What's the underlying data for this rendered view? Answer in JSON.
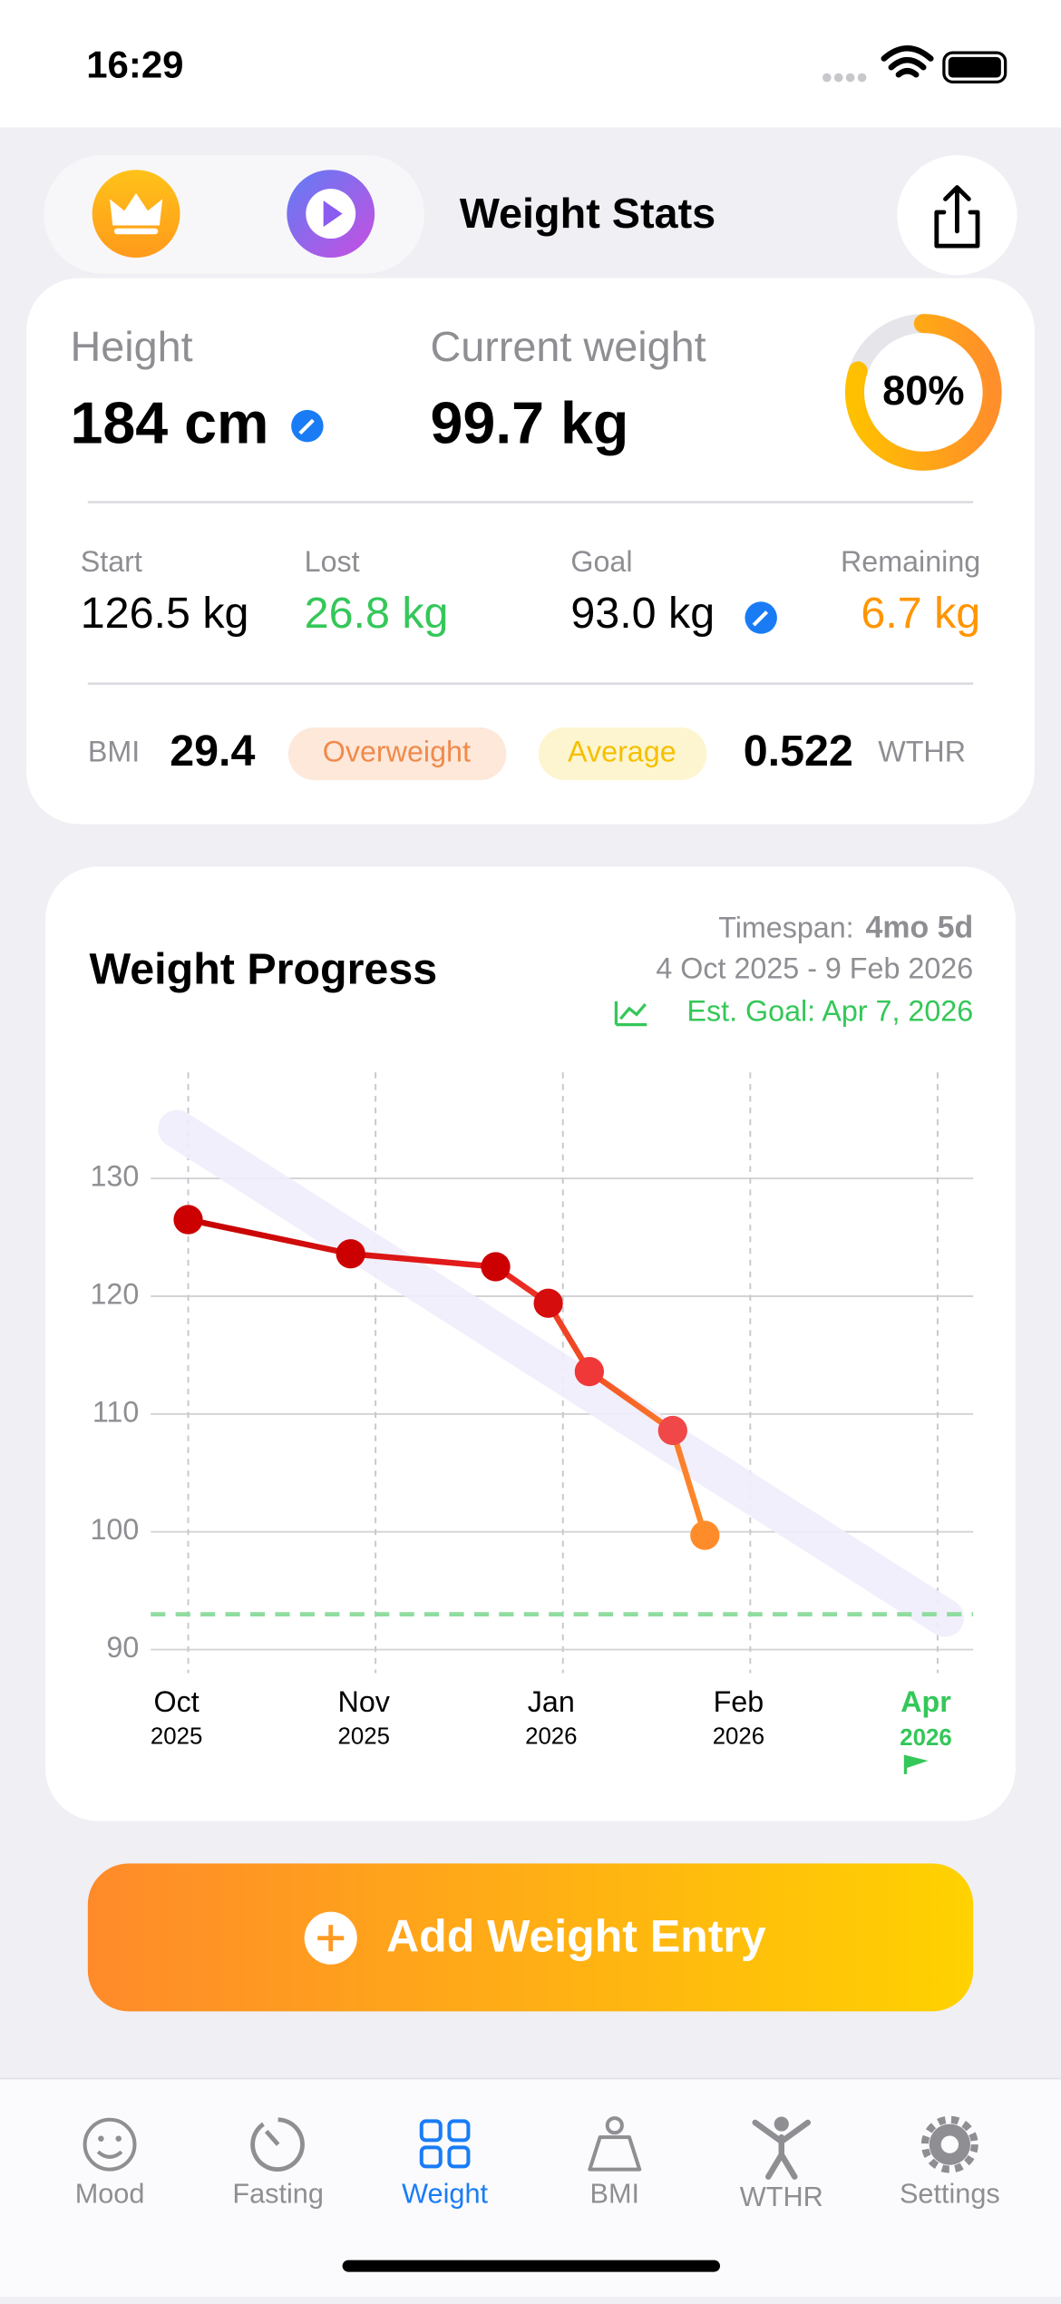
{
  "status_bar": {
    "time": "16:29"
  },
  "header": {
    "title": "Weight Stats"
  },
  "stats": {
    "height_label": "Height",
    "height": "184 cm",
    "current_label": "Current weight",
    "current": "99.7 kg",
    "progress": {
      "value": 80,
      "label": "80%"
    },
    "start_label": "Start",
    "start": "126.5 kg",
    "lost_label": "Lost",
    "lost": "26.8 kg",
    "goal_label": "Goal",
    "goal": "93.0 kg",
    "remaining_label": "Remaining",
    "remaining": "6.7 kg",
    "bmi_label": "BMI",
    "bmi": "29.4",
    "bmi_class": "Overweight",
    "wthr_class": "Average",
    "wthr": "0.522",
    "wthr_label": "WTHR"
  },
  "progress_card": {
    "title": "Weight Progress",
    "timespan_label": "Timespan:",
    "timespan": "4mo 5d",
    "range": "4 Oct 2025 - 9 Feb 2026",
    "est_goal": "Est. Goal: Apr 7, 2026"
  },
  "chart_data": {
    "type": "line",
    "xlim": [
      -0.2,
      4.19
    ],
    "ylim": [
      88,
      139
    ],
    "xticks": [
      {
        "value": 0,
        "label": "Oct"
      },
      {
        "value": 1,
        "label": "Nov"
      },
      {
        "value": 2,
        "label": "Jan"
      },
      {
        "value": 3,
        "label": "Feb"
      },
      {
        "value": 4,
        "label": "Apr"
      }
    ],
    "xtick_years": [
      "2025",
      "2025",
      "2026",
      "2026",
      "2026"
    ],
    "yticks": [
      90,
      100,
      110,
      120,
      130
    ],
    "grid": true,
    "series": [
      {
        "name": "Weight",
        "color": "#d40000",
        "x": [
          0,
          0.867,
          1.641,
          1.922,
          2.141,
          2.586,
          2.758
        ],
        "values": [
          126.5,
          123.6,
          122.5,
          119.4,
          113.6,
          108.6,
          99.7
        ],
        "point_colors": [
          "#cc0000",
          "#cc0000",
          "#cc0000",
          "#d50d0d",
          "#f03838",
          "#f04848",
          "#ff8c2a"
        ]
      }
    ],
    "trend": {
      "x": [
        -0.06,
        4.04
      ],
      "values": [
        134.2,
        92.7
      ],
      "color": "#f0eefc"
    },
    "goal_line": {
      "value": 93.0,
      "color": "#8fdc9f"
    },
    "goal_tick_color": "#34c759"
  },
  "button": {
    "label": "Add Weight Entry"
  },
  "tabs": [
    {
      "label": "Mood"
    },
    {
      "label": "Fasting"
    },
    {
      "label": "Weight"
    },
    {
      "label": "BMI"
    },
    {
      "label": "WTHR"
    },
    {
      "label": "Settings"
    }
  ],
  "active_tab": 2
}
